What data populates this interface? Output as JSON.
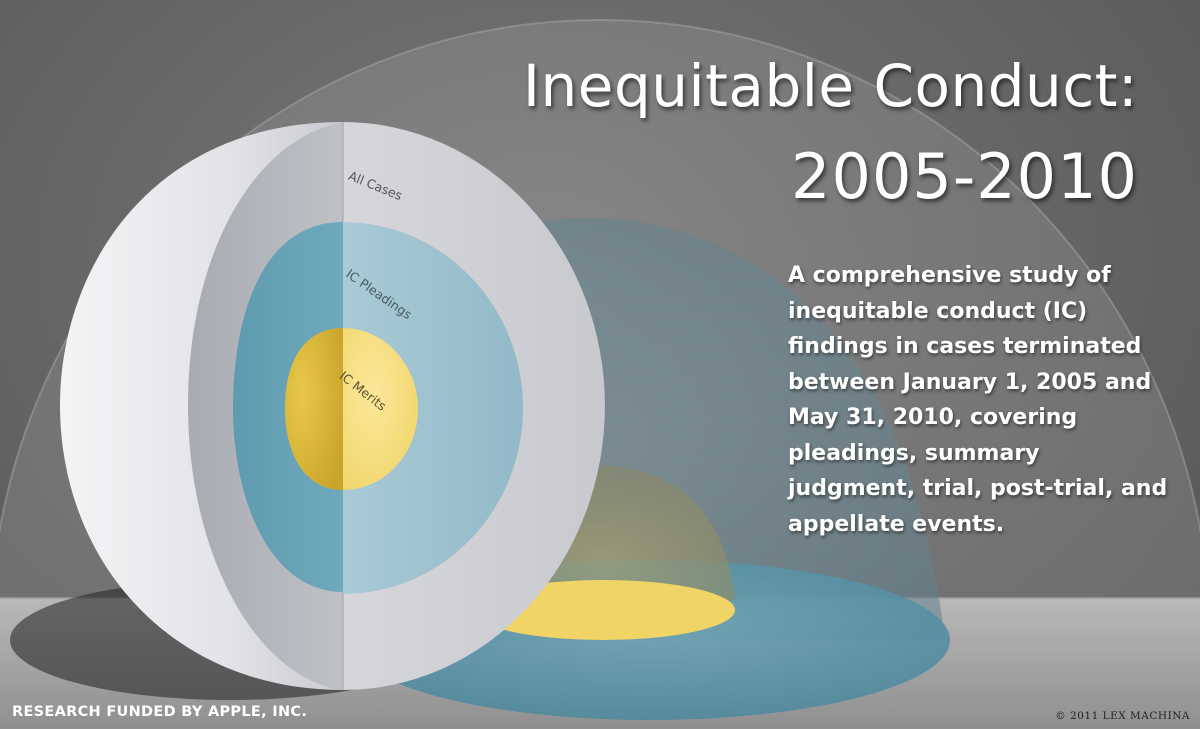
{
  "title": {
    "line1": "Inequitable Conduct:",
    "line2": "2005-2010"
  },
  "description": "A comprehensive study of inequitable conduct (IC) findings in cases terminated between January 1, 2005 and May 31, 2010, covering pleadings, summary judgment, trial, post-trial, and appellate events.",
  "rings": {
    "outer_label": "All Cases",
    "middle_label": "IC Pleadings",
    "inner_label": "IC Merits"
  },
  "footer": {
    "funding": "RESEARCH FUNDED BY APPLE, INC.",
    "copyright": "© 2011 LEX MACHINA"
  },
  "colors": {
    "background": "#5a5a5a",
    "outer_sphere": "#d9dade",
    "middle_sphere": "#8fb8c8",
    "inner_sphere": "#f0d060",
    "text": "#ffffff"
  }
}
